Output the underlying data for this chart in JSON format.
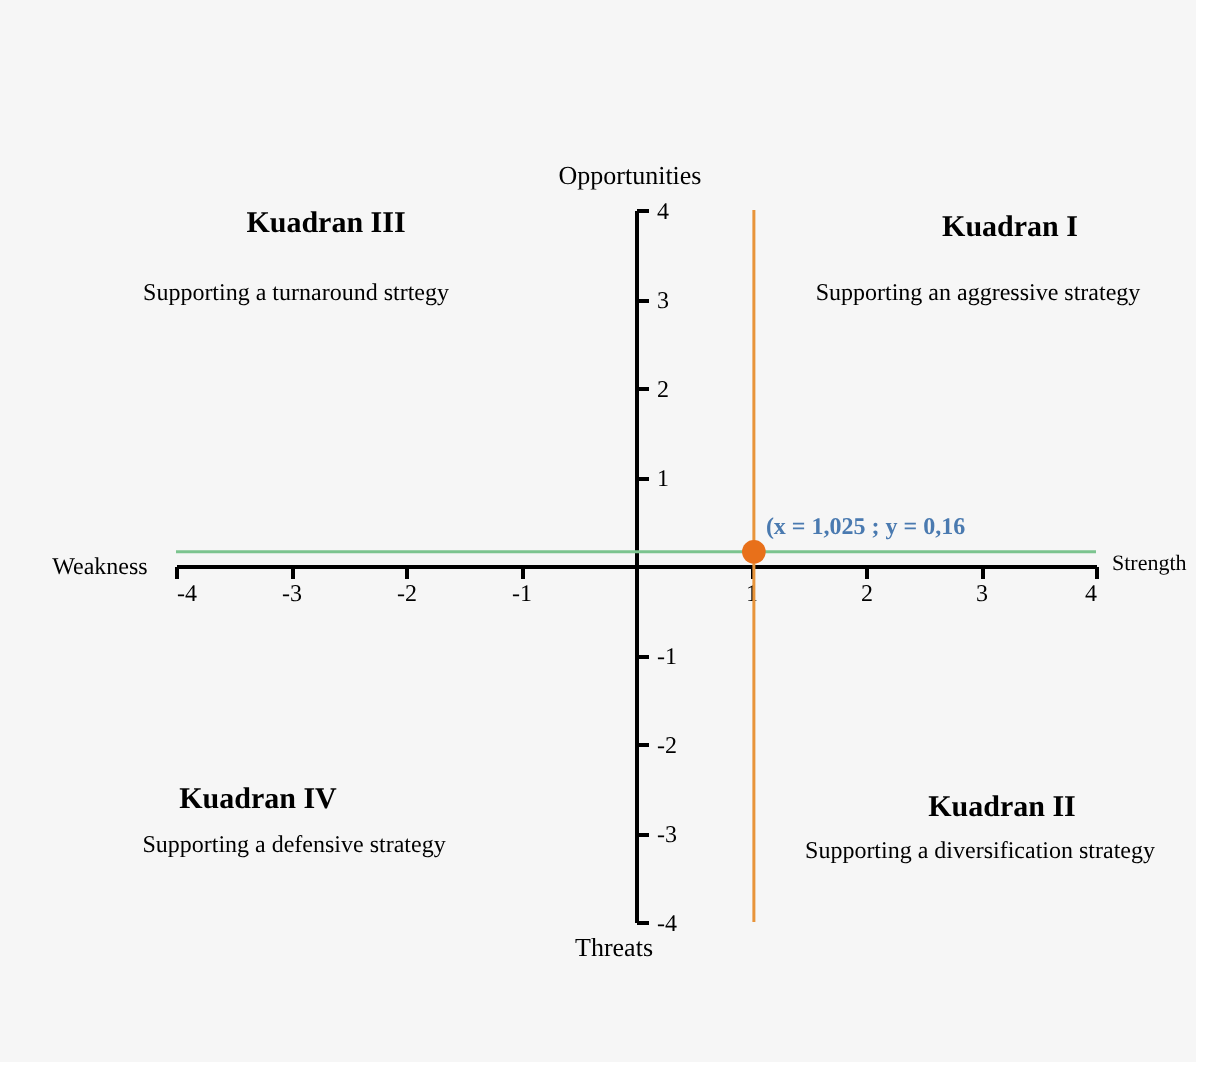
{
  "chart_data": {
    "type": "scatter",
    "x": [
      1.025
    ],
    "values": [
      0.16
    ],
    "color": "#e8701a",
    "marker": "circle",
    "xlim": [
      -4,
      4
    ],
    "ylim": [
      -4,
      4
    ],
    "xticks": [
      -4,
      -3,
      -2,
      -1,
      1,
      2,
      3,
      4
    ],
    "yticks": [
      -4,
      -3,
      -2,
      -1,
      1,
      2,
      3,
      4
    ],
    "grid": false,
    "ref_lines": [
      {
        "axis": "y",
        "value": 0.16,
        "color": "#7cc48f"
      },
      {
        "axis": "x",
        "value": 1.025,
        "color": "#e8943a"
      }
    ],
    "annotations": [
      "Opportunities",
      "Threats",
      "Weakness",
      "Strength",
      "Kuadran III",
      "Supporting a turnaround strtegy",
      "Kuadran I",
      "Supporting an aggressive strategy",
      "Kuadran IV",
      "Supporting a defensive strategy",
      "Kuadran II",
      "Supporting a diversification strategy",
      {
        "text": "(x = 1,025 ; y = 0,16",
        "x": 1.025,
        "y": 0.16
      }
    ]
  }
}
